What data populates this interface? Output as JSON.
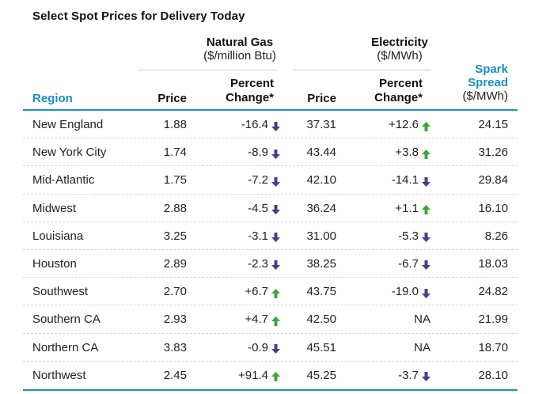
{
  "title": "Select Spot Prices for Delivery Today",
  "groups": {
    "natural_gas": {
      "title": "Natural Gas",
      "unit": "($/million Btu)"
    },
    "electricity": {
      "title": "Electricity",
      "unit": "($/MWh)"
    }
  },
  "columns": {
    "region": "Region",
    "gas_price": "Price",
    "gas_pct_line1": "Percent",
    "gas_pct_line2": "Change*",
    "elec_price": "Price",
    "elec_pct_line1": "Percent",
    "elec_pct_line2": "Change*",
    "spark_line1": "Spark",
    "spark_line2": "Spread",
    "spark_unit": "($/MWh)"
  },
  "colors": {
    "accent": "#1a8fc2",
    "up_arrow": "#3aa53a",
    "down_arrow": "#4b3a8c"
  },
  "rows": [
    {
      "region": "New England",
      "gas_price": "1.88",
      "gas_pct": "-16.4",
      "gas_dir": "down",
      "elec_price": "37.31",
      "elec_pct": "+12.6",
      "elec_dir": "up",
      "spark": "24.15"
    },
    {
      "region": "New York City",
      "gas_price": "1.74",
      "gas_pct": "-8.9",
      "gas_dir": "down",
      "elec_price": "43.44",
      "elec_pct": "+3.8",
      "elec_dir": "up",
      "spark": "31.26"
    },
    {
      "region": "Mid-Atlantic",
      "gas_price": "1.75",
      "gas_pct": "-7.2",
      "gas_dir": "down",
      "elec_price": "42.10",
      "elec_pct": "-14.1",
      "elec_dir": "down",
      "spark": "29.84"
    },
    {
      "region": "Midwest",
      "gas_price": "2.88",
      "gas_pct": "-4.5",
      "gas_dir": "down",
      "elec_price": "36.24",
      "elec_pct": "+1.1",
      "elec_dir": "up",
      "spark": "16.10"
    },
    {
      "region": "Louisiana",
      "gas_price": "3.25",
      "gas_pct": "-3.1",
      "gas_dir": "down",
      "elec_price": "31.00",
      "elec_pct": "-5.3",
      "elec_dir": "down",
      "spark": "8.26"
    },
    {
      "region": "Houston",
      "gas_price": "2.89",
      "gas_pct": "-2.3",
      "gas_dir": "down",
      "elec_price": "38.25",
      "elec_pct": "-6.7",
      "elec_dir": "down",
      "spark": "18.03"
    },
    {
      "region": "Southwest",
      "gas_price": "2.70",
      "gas_pct": "+6.7",
      "gas_dir": "up",
      "elec_price": "43.75",
      "elec_pct": "-19.0",
      "elec_dir": "down",
      "spark": "24.82"
    },
    {
      "region": "Southern CA",
      "gas_price": "2.93",
      "gas_pct": "+4.7",
      "gas_dir": "up",
      "elec_price": "42.50",
      "elec_pct": "NA",
      "elec_dir": "",
      "spark": "21.99"
    },
    {
      "region": "Northern CA",
      "gas_price": "3.83",
      "gas_pct": "-0.9",
      "gas_dir": "down",
      "elec_price": "45.51",
      "elec_pct": "NA",
      "elec_dir": "",
      "spark": "18.70"
    },
    {
      "region": "Northwest",
      "gas_price": "2.45",
      "gas_pct": "+91.4",
      "gas_dir": "up",
      "elec_price": "45.25",
      "elec_pct": "-3.7",
      "elec_dir": "down",
      "spark": "28.10"
    }
  ]
}
